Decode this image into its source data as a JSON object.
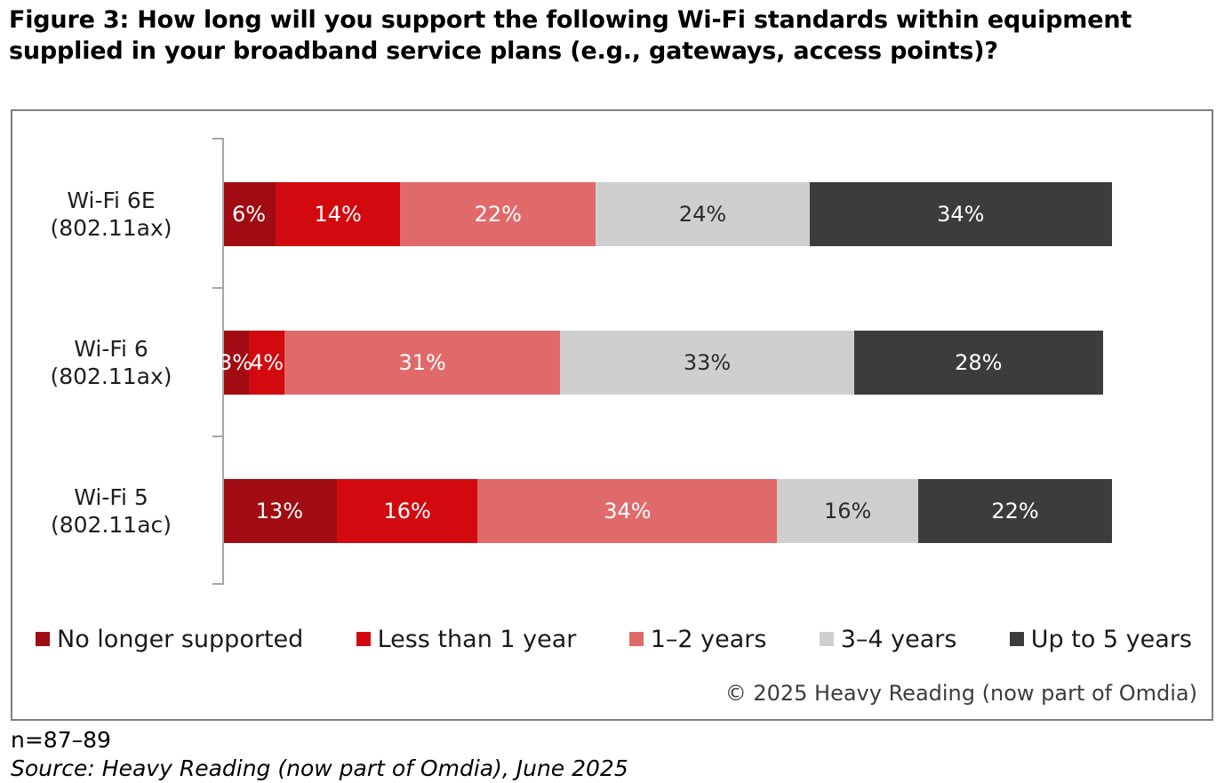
{
  "title": "Figure 3: How long will you support the following Wi-Fi standards within equipment supplied in your broadband service plans (e.g., gateways, access points)?",
  "chart_data": {
    "type": "bar",
    "orientation": "horizontal",
    "stacked": true,
    "value_suffix": "%",
    "xlim": [
      0,
      100
    ],
    "grid": false,
    "legend_position": "bottom",
    "categories": [
      {
        "name": "Wi-Fi 6E",
        "spec": "(802.11ax)"
      },
      {
        "name": "Wi-Fi 6",
        "spec": "(802.11ax)"
      },
      {
        "name": "Wi-Fi 5",
        "spec": "(802.11ac)"
      }
    ],
    "series": [
      {
        "name": "No longer supported",
        "color": "#A00C11",
        "label_color": "#FFFFFF",
        "values": [
          6,
          3,
          13
        ]
      },
      {
        "name": "Less than 1 year",
        "color": "#D20A10",
        "label_color": "#FFFFFF",
        "values": [
          14,
          4,
          16
        ]
      },
      {
        "name": "1–2 years",
        "color": "#E06A6A",
        "label_color": "#FFFFFF",
        "values": [
          22,
          31,
          34
        ]
      },
      {
        "name": "3–4 years",
        "color": "#D0CFCF",
        "label_color": "#2B2B2B",
        "values": [
          24,
          33,
          16
        ]
      },
      {
        "name": "Up to 5 years",
        "color": "#3D3C3C",
        "label_color": "#FFFFFF",
        "values": [
          34,
          28,
          22
        ]
      }
    ]
  },
  "copyright": "© 2025 Heavy Reading (now part of Omdia)",
  "footer": {
    "n_label": "n=87–89",
    "source": "Source: Heavy Reading (now part of Omdia), June 2025"
  }
}
